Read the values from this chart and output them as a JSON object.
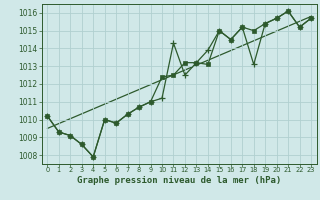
{
  "title": "Graphe pression niveau de la mer (hPa)",
  "bg_color": "#d0e8e8",
  "plot_bg_color": "#d0e8e8",
  "grid_color": "#b0d0d0",
  "line_color": "#2d5a2d",
  "xlim": [
    -0.5,
    23.5
  ],
  "ylim": [
    1007.5,
    1016.5
  ],
  "xticks": [
    0,
    1,
    2,
    3,
    4,
    5,
    6,
    7,
    8,
    9,
    10,
    11,
    12,
    13,
    14,
    15,
    16,
    17,
    18,
    19,
    20,
    21,
    22,
    23
  ],
  "yticks": [
    1008,
    1009,
    1010,
    1011,
    1012,
    1013,
    1014,
    1015,
    1016
  ],
  "series1_x": [
    0,
    1,
    2,
    3,
    4,
    5,
    6,
    7,
    8,
    9,
    10,
    11,
    12,
    13,
    14,
    15,
    16,
    17,
    18,
    19,
    20,
    21,
    22,
    23
  ],
  "series1_y": [
    1010.2,
    1009.3,
    1009.1,
    1008.6,
    1007.9,
    1010.0,
    1009.8,
    1010.3,
    1010.7,
    1011.0,
    1011.2,
    1014.3,
    1012.5,
    1013.2,
    1013.9,
    1015.0,
    1014.5,
    1015.2,
    1013.1,
    1015.4,
    1015.7,
    1016.1,
    1015.2,
    1015.7
  ],
  "series2_x": [
    0,
    1,
    2,
    3,
    4,
    5,
    6,
    7,
    8,
    9,
    10,
    11,
    12,
    13,
    14,
    15,
    16,
    17,
    18,
    19,
    20,
    21,
    22,
    23
  ],
  "series2_y": [
    1010.2,
    1009.3,
    1009.1,
    1008.6,
    1007.9,
    1010.0,
    1009.8,
    1010.3,
    1010.7,
    1011.0,
    1012.4,
    1012.5,
    1013.2,
    1013.2,
    1013.1,
    1015.0,
    1014.5,
    1015.2,
    1015.0,
    1015.4,
    1015.7,
    1016.1,
    1015.2,
    1015.7
  ],
  "trend_x": [
    0,
    23
  ],
  "trend_y": [
    1009.5,
    1015.8
  ],
  "xlabel_fontsize": 6.5,
  "ytick_fontsize": 5.5,
  "xtick_fontsize": 4.8
}
